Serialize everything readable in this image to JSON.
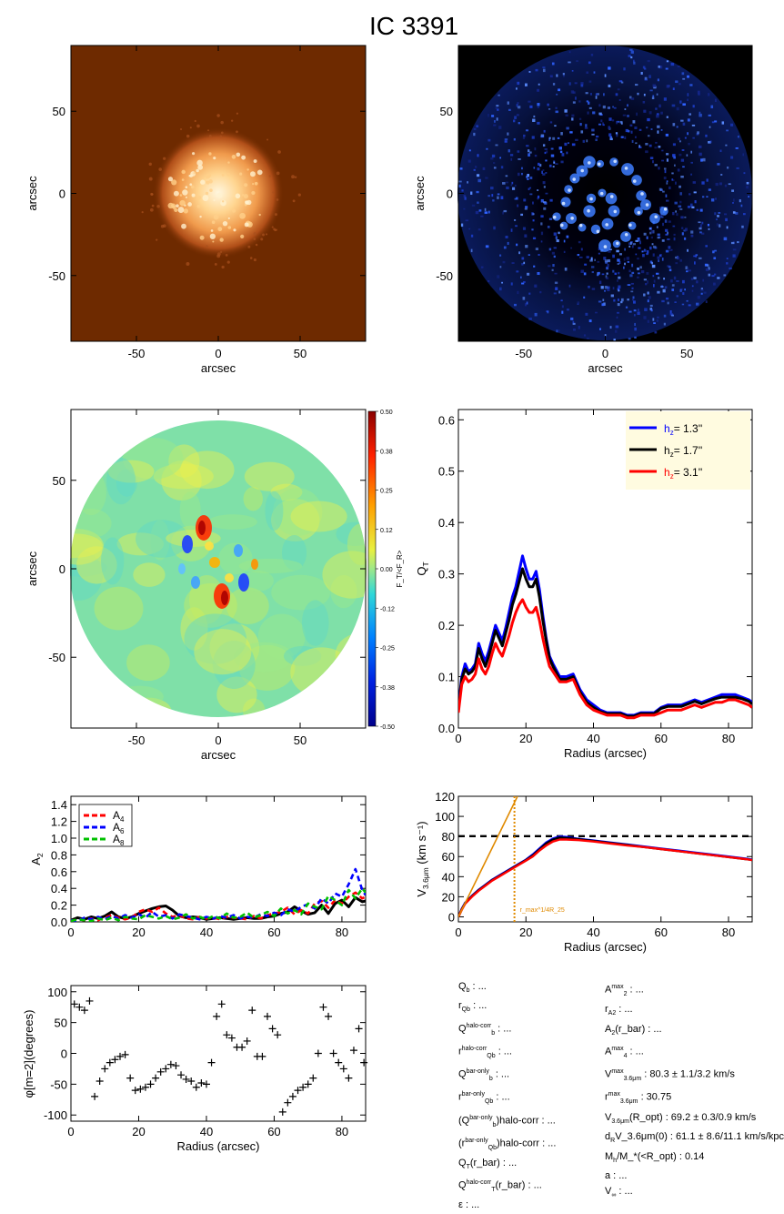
{
  "title": "IC 3391",
  "colors": {
    "halo_1_3": "#0000ff",
    "halo_1_7": "#000000",
    "halo_3_1": "#ff0000",
    "a4": "#ff0000",
    "a6": "#0000ff",
    "a8": "#00c000",
    "tangent": "#e08a00"
  },
  "images": {
    "top_left": {
      "xlabel": "arcsec",
      "ylabel": "arcsec",
      "xticks": [
        "-50",
        "0",
        "50"
      ],
      "yticks": [
        "50",
        "0",
        "-50"
      ]
    },
    "top_right": {
      "xlabel": "arcsec",
      "ylabel": "arcsec",
      "xticks": [
        "-50",
        "0",
        "50"
      ],
      "yticks": [
        "50",
        "0",
        "-50"
      ]
    },
    "force_map": {
      "xlabel": "arcsec",
      "ylabel": "arcsec",
      "xticks": [
        "-50",
        "0",
        "50"
      ],
      "yticks": [
        "50",
        "0",
        "-50"
      ],
      "colorbar_label": "F_T/<F_R>",
      "colorbar_ticks": [
        "0.50",
        "0.38",
        "0.25",
        "0.12",
        "0.00",
        "-0.12",
        "-0.25",
        "-0.38",
        "-0.50"
      ]
    }
  },
  "chart_data": [
    {
      "id": "qt",
      "type": "line",
      "xlabel": "Radius (arcsec)",
      "ylabel": "Q_T",
      "xlim": [
        0,
        87
      ],
      "ylim": [
        0,
        0.62
      ],
      "xticks": [
        "0",
        "20",
        "40",
        "60",
        "80"
      ],
      "yticks": [
        "0.0",
        "0.1",
        "0.2",
        "0.3",
        "0.4",
        "0.5",
        "0.6"
      ],
      "legend": "top-right",
      "x": [
        0,
        1,
        2,
        3,
        4,
        5,
        6,
        7,
        8,
        9,
        10,
        11,
        12,
        13,
        14,
        15,
        16,
        17,
        18,
        19,
        20,
        21,
        22,
        23,
        24,
        25,
        26,
        27,
        28,
        30,
        32,
        34,
        36,
        38,
        40,
        42,
        44,
        46,
        48,
        50,
        52,
        54,
        56,
        58,
        60,
        62,
        64,
        66,
        68,
        70,
        72,
        74,
        76,
        78,
        80,
        82,
        84,
        86,
        87
      ],
      "series": [
        {
          "name": "h_z= 1.3''",
          "legend_label": "h",
          "legend_sub": "z",
          "legend_value": "= 1.3''",
          "color": "#0000ff",
          "values": [
            0.04,
            0.1,
            0.125,
            0.11,
            0.115,
            0.125,
            0.165,
            0.145,
            0.13,
            0.15,
            0.175,
            0.2,
            0.185,
            0.17,
            0.195,
            0.225,
            0.255,
            0.275,
            0.305,
            0.335,
            0.31,
            0.29,
            0.29,
            0.305,
            0.27,
            0.22,
            0.175,
            0.14,
            0.125,
            0.1,
            0.1,
            0.105,
            0.075,
            0.055,
            0.045,
            0.035,
            0.03,
            0.03,
            0.03,
            0.025,
            0.025,
            0.03,
            0.03,
            0.03,
            0.04,
            0.045,
            0.045,
            0.045,
            0.05,
            0.055,
            0.05,
            0.055,
            0.06,
            0.065,
            0.065,
            0.065,
            0.06,
            0.055,
            0.05
          ]
        },
        {
          "name": "h_z= 1.7''",
          "legend_label": "h",
          "legend_sub": "z",
          "legend_value": "= 1.7''",
          "color": "#000000",
          "values": [
            0.035,
            0.095,
            0.115,
            0.105,
            0.11,
            0.12,
            0.155,
            0.135,
            0.12,
            0.14,
            0.165,
            0.19,
            0.175,
            0.16,
            0.185,
            0.21,
            0.24,
            0.26,
            0.285,
            0.31,
            0.29,
            0.275,
            0.275,
            0.29,
            0.255,
            0.21,
            0.17,
            0.135,
            0.12,
            0.095,
            0.095,
            0.1,
            0.07,
            0.05,
            0.04,
            0.032,
            0.028,
            0.028,
            0.028,
            0.023,
            0.023,
            0.028,
            0.028,
            0.028,
            0.038,
            0.042,
            0.042,
            0.042,
            0.047,
            0.052,
            0.047,
            0.052,
            0.057,
            0.06,
            0.06,
            0.06,
            0.057,
            0.052,
            0.047
          ]
        },
        {
          "name": "h_z= 3.1''",
          "legend_label": "h",
          "legend_sub": "z",
          "legend_value": "= 3.1''",
          "color": "#ff0000",
          "values": [
            0.03,
            0.085,
            0.1,
            0.09,
            0.095,
            0.105,
            0.135,
            0.115,
            0.105,
            0.12,
            0.145,
            0.165,
            0.15,
            0.14,
            0.16,
            0.18,
            0.205,
            0.225,
            0.24,
            0.25,
            0.235,
            0.225,
            0.225,
            0.235,
            0.21,
            0.175,
            0.145,
            0.12,
            0.11,
            0.09,
            0.09,
            0.095,
            0.065,
            0.045,
            0.035,
            0.03,
            0.025,
            0.025,
            0.025,
            0.02,
            0.02,
            0.025,
            0.025,
            0.025,
            0.03,
            0.035,
            0.035,
            0.035,
            0.04,
            0.045,
            0.04,
            0.045,
            0.05,
            0.05,
            0.055,
            0.055,
            0.05,
            0.045,
            0.04
          ]
        }
      ]
    },
    {
      "id": "am",
      "type": "line",
      "xlabel": "",
      "ylabel": "A_2",
      "xlim": [
        0,
        87
      ],
      "ylim": [
        0,
        1.5
      ],
      "xticks": [
        "0",
        "20",
        "40",
        "60",
        "80"
      ],
      "yticks": [
        "0.0",
        "0.2",
        "0.4",
        "0.6",
        "0.8",
        "1.0",
        "1.2",
        "1.4"
      ],
      "legend": "top-left",
      "x": [
        0,
        2,
        4,
        6,
        8,
        10,
        12,
        14,
        16,
        18,
        20,
        22,
        24,
        26,
        28,
        30,
        32,
        34,
        36,
        38,
        40,
        42,
        44,
        46,
        48,
        50,
        52,
        54,
        56,
        58,
        60,
        62,
        64,
        66,
        68,
        70,
        72,
        74,
        76,
        78,
        80,
        82,
        84,
        86,
        87
      ],
      "series": [
        {
          "name": "A_2",
          "legend": false,
          "color": "#000000",
          "values": [
            0.02,
            0.05,
            0.03,
            0.06,
            0.04,
            0.07,
            0.12,
            0.06,
            0.04,
            0.06,
            0.1,
            0.13,
            0.16,
            0.18,
            0.19,
            0.14,
            0.07,
            0.05,
            0.06,
            0.05,
            0.03,
            0.04,
            0.05,
            0.04,
            0.03,
            0.04,
            0.05,
            0.04,
            0.04,
            0.06,
            0.07,
            0.1,
            0.12,
            0.18,
            0.13,
            0.09,
            0.11,
            0.2,
            0.1,
            0.22,
            0.26,
            0.18,
            0.29,
            0.24,
            0.25
          ]
        },
        {
          "name": "A_4",
          "legend_label": "A",
          "legend_sub": "4",
          "color": "#ff0000",
          "values": [
            0.01,
            0.03,
            0.02,
            0.04,
            0.02,
            0.05,
            0.08,
            0.05,
            0.03,
            0.05,
            0.12,
            0.15,
            0.12,
            0.17,
            0.1,
            0.06,
            0.08,
            0.04,
            0.03,
            0.06,
            0.04,
            0.05,
            0.03,
            0.06,
            0.05,
            0.04,
            0.03,
            0.07,
            0.04,
            0.08,
            0.1,
            0.12,
            0.17,
            0.09,
            0.14,
            0.1,
            0.22,
            0.25,
            0.17,
            0.26,
            0.22,
            0.3,
            0.35,
            0.28,
            0.3
          ]
        },
        {
          "name": "A_6",
          "legend_label": "A",
          "legend_sub": "6",
          "color": "#0000ff",
          "values": [
            0.02,
            0.01,
            0.05,
            0.03,
            0.06,
            0.03,
            0.07,
            0.04,
            0.08,
            0.05,
            0.09,
            0.05,
            0.12,
            0.06,
            0.08,
            0.04,
            0.09,
            0.07,
            0.05,
            0.03,
            0.06,
            0.04,
            0.07,
            0.05,
            0.08,
            0.04,
            0.06,
            0.05,
            0.09,
            0.07,
            0.11,
            0.08,
            0.15,
            0.12,
            0.18,
            0.21,
            0.16,
            0.28,
            0.22,
            0.34,
            0.3,
            0.45,
            0.63,
            0.38,
            0.32
          ]
        },
        {
          "name": "A_8",
          "legend_label": "A",
          "legend_sub": "8",
          "color": "#00c000",
          "values": [
            0.01,
            0.03,
            0.02,
            0.01,
            0.04,
            0.02,
            0.05,
            0.02,
            0.06,
            0.04,
            0.03,
            0.08,
            0.06,
            0.04,
            0.07,
            0.03,
            0.05,
            0.09,
            0.04,
            0.06,
            0.03,
            0.07,
            0.04,
            0.1,
            0.05,
            0.06,
            0.11,
            0.05,
            0.08,
            0.12,
            0.07,
            0.16,
            0.1,
            0.14,
            0.09,
            0.22,
            0.18,
            0.15,
            0.31,
            0.26,
            0.2,
            0.38,
            0.28,
            0.4,
            0.35
          ]
        }
      ]
    },
    {
      "id": "rc",
      "type": "line",
      "xlabel": "Radius (arcsec)",
      "ylabel": "V_3.6μm (km s^-1)",
      "xlim": [
        0,
        87
      ],
      "ylim": [
        -5,
        120
      ],
      "xticks": [
        "0",
        "20",
        "40",
        "60",
        "80"
      ],
      "yticks": [
        "0",
        "20",
        "40",
        "60",
        "80",
        "100",
        "120"
      ],
      "hline": 80.3,
      "vline": 16.6,
      "annotation": "r_max^1/4R_25",
      "x": [
        0,
        1,
        2,
        4,
        6,
        8,
        10,
        12,
        14,
        16,
        18,
        20,
        22,
        24,
        26,
        28,
        30,
        32,
        35,
        40,
        45,
        50,
        55,
        60,
        65,
        70,
        75,
        80,
        85,
        87
      ],
      "series": [
        {
          "name": "rc_blue",
          "color": "#0000ff",
          "values": [
            0,
            8,
            14,
            21,
            27,
            32,
            37,
            41,
            45,
            49,
            53,
            57,
            62,
            68,
            74,
            78,
            80,
            79.5,
            78,
            76,
            74,
            72,
            70,
            68,
            66,
            64,
            62,
            60,
            58,
            57
          ]
        },
        {
          "name": "rc_black",
          "color": "#000000",
          "values": [
            0,
            7.5,
            13.5,
            20.5,
            26.5,
            31.5,
            36.5,
            40.5,
            44.5,
            48.5,
            52.5,
            56.5,
            61,
            67,
            73,
            77,
            79,
            78.5,
            77.5,
            75.5,
            73.5,
            71.5,
            69.5,
            67.5,
            65.5,
            63.5,
            61.5,
            59.5,
            57.5,
            56.5
          ]
        },
        {
          "name": "rc_red",
          "color": "#ff0000",
          "values": [
            0,
            7,
            13,
            20,
            26,
            31,
            36,
            40,
            44,
            48,
            52,
            56,
            60,
            66,
            71,
            75,
            77,
            77,
            76.5,
            75,
            73,
            71,
            69.5,
            67.5,
            65.5,
            63.5,
            61.5,
            59.5,
            57.5,
            56.5
          ]
        },
        {
          "name": "tangent",
          "color": "#e08a00",
          "x": [
            0,
            17.5
          ],
          "values": [
            0,
            120
          ]
        }
      ]
    },
    {
      "id": "phase",
      "type": "scatter",
      "xlabel": "Radius (arcsec)",
      "ylabel": "φ[m=2](degrees)",
      "xlim": [
        0,
        87
      ],
      "ylim": [
        -110,
        110
      ],
      "xticks": [
        "0",
        "20",
        "40",
        "60",
        "80"
      ],
      "yticks": [
        "100",
        "50",
        "0",
        "-50",
        "-100"
      ],
      "x": [
        1,
        2.5,
        4,
        5.5,
        7,
        8.5,
        10,
        11.5,
        13,
        14.5,
        16,
        17.5,
        19,
        20.5,
        22,
        23.5,
        25,
        26.5,
        28,
        29.5,
        31,
        32.5,
        34,
        35.5,
        37,
        38.5,
        40,
        41.5,
        43,
        44.5,
        46,
        47.5,
        49,
        50.5,
        52,
        53.5,
        55,
        56.5,
        58,
        59.5,
        61,
        62.5,
        64,
        65.5,
        67,
        68.5,
        70,
        71.5,
        73,
        74.5,
        76,
        77.5,
        79,
        80.5,
        82,
        83.5,
        85,
        86.5
      ],
      "values": [
        80,
        75,
        70,
        85,
        -70,
        -45,
        -25,
        -15,
        -10,
        -5,
        -2,
        -40,
        -60,
        -58,
        -55,
        -50,
        -40,
        -30,
        -25,
        -18,
        -20,
        -35,
        -42,
        -45,
        -55,
        -48,
        -50,
        -15,
        60,
        80,
        30,
        25,
        10,
        10,
        20,
        70,
        -5,
        -5,
        60,
        40,
        30,
        -95,
        -80,
        -70,
        -60,
        -55,
        -50,
        -40,
        0,
        75,
        60,
        0,
        -15,
        -25,
        -40,
        5,
        40,
        -15
      ]
    }
  ],
  "params_left": [
    {
      "label": "Q",
      "sub": "b",
      "sup": "",
      "rest": " : ..."
    },
    {
      "label": "r",
      "sub": "Qb",
      "sup": "",
      "rest": " : ..."
    },
    {
      "label": "Q",
      "sub": "b",
      "sup": "halo-corr",
      "rest": " : ..."
    },
    {
      "label": "r",
      "sub": "Qb",
      "sup": "halo-corr",
      "rest": " : ..."
    },
    {
      "label": "Q",
      "sub": "b",
      "sup": "bar-only",
      "rest": " : ..."
    },
    {
      "label": "r",
      "sub": "Qb",
      "sup": "bar-only",
      "rest": " : ..."
    },
    {
      "label": "(Q",
      "sub": "b",
      "sup": "bar-only",
      "rest": ")halo-corr : ..."
    },
    {
      "label": "(r",
      "sub": "Qb",
      "sup": "bar-only",
      "rest": ")halo-corr : ..."
    },
    {
      "label": "Q",
      "sub": "T",
      "sup": "",
      "rest": "(r_bar) : ..."
    },
    {
      "label": "Q",
      "sub": "T",
      "sup": "halo-corr",
      "rest": "(r_bar) : ..."
    },
    {
      "label": "ε",
      "sub": "",
      "sup": "",
      "rest": " : ..."
    }
  ],
  "params_right": [
    {
      "label": "A",
      "sub": "2",
      "sup": "max",
      "rest": " : ..."
    },
    {
      "label": "r",
      "sub": "A2",
      "sup": "",
      "rest": " : ..."
    },
    {
      "label": "A",
      "sub": "2",
      "sup": "",
      "rest": "(r_bar) : ..."
    },
    {
      "label": "A",
      "sub": "4",
      "sup": "max",
      "rest": " : ..."
    },
    {
      "label": "V",
      "sub": "3.6μm",
      "sup": "max",
      "rest": " :   80.3 ± 1.1/3.2 km/s"
    },
    {
      "label": "r",
      "sub": "3.6μm",
      "sup": "max",
      "rest": " :  30.75"
    },
    {
      "label": "V",
      "sub": "3.6μm",
      "sup": "",
      "rest": "(R_opt) :   69.2 ± 0.3/0.9 km/s"
    },
    {
      "label": "d",
      "sub": "R",
      "sup": "",
      "rest": "V_3.6μm(0) :  61.1 ± 8.6/11.1 km/s/kpc"
    },
    {
      "label": "M",
      "sub": "h",
      "sup": "",
      "rest": "/M_*(<R_opt) :   0.14"
    },
    {
      "label": "a",
      "sub": "",
      "sup": "",
      "rest": " : ..."
    },
    {
      "label": "V",
      "sub": "∞",
      "sup": "",
      "rest": " : ..."
    }
  ]
}
